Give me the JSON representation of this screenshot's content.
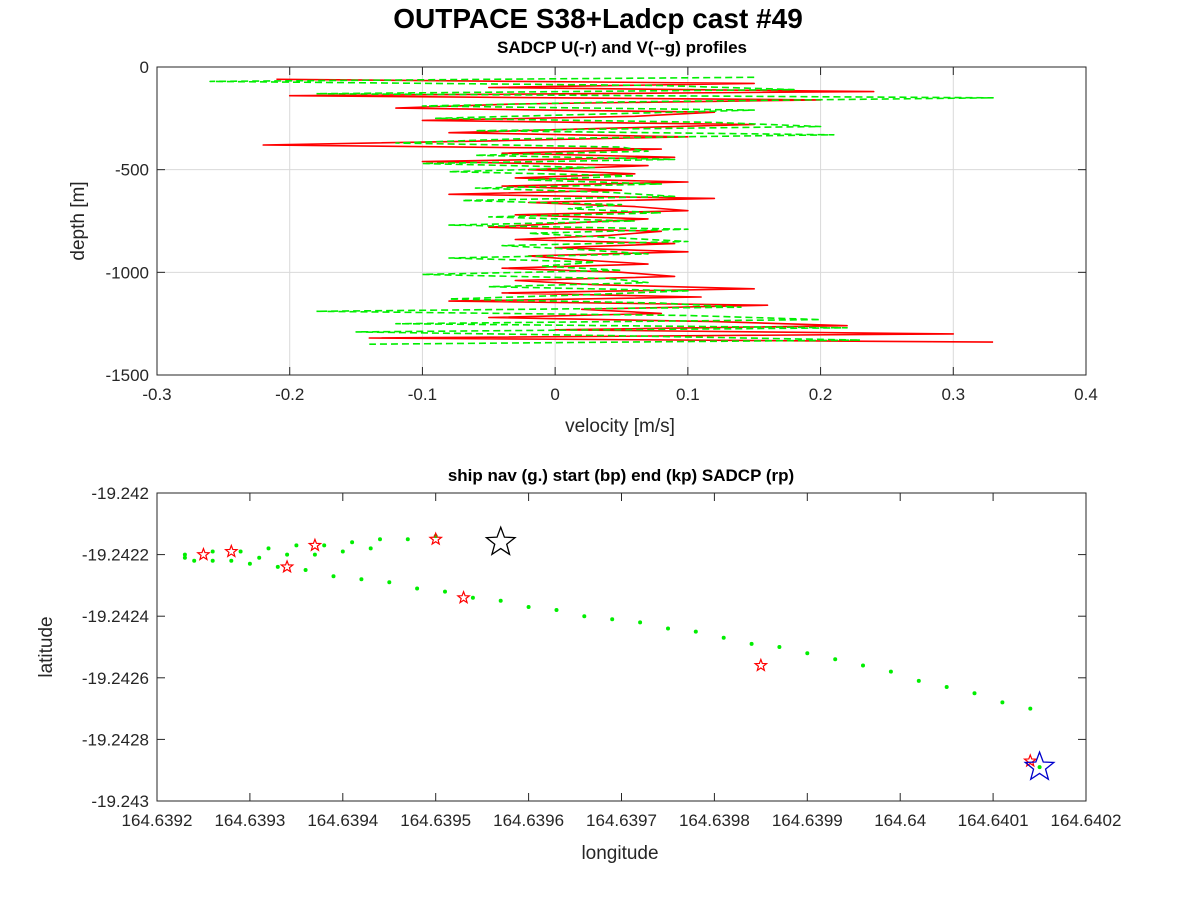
{
  "figure_title": "OUTPACE S38+Ladcp cast #49",
  "colors": {
    "u_line": "#ff0000",
    "v_line": "#00ee00",
    "ship_nav": "#00ee00",
    "sadcp_marker": "#ff0000",
    "start_marker": "#0000cc",
    "end_marker": "#000000",
    "grid": "#d9d9d9",
    "axis": "#262626"
  },
  "chart_data": [
    {
      "type": "line",
      "title": "SADCP U(-r) and V(--g) profiles",
      "xlabel": "velocity [m/s]",
      "ylabel": "depth [m]",
      "xlim": [
        -0.3,
        0.4
      ],
      "ylim": [
        -1500,
        0
      ],
      "xticks": [
        "-0.3",
        "-0.2",
        "-0.1",
        "0",
        "0.1",
        "0.2",
        "0.3",
        "0.4"
      ],
      "yticks": [
        "-1500",
        "-1000",
        "-500",
        "0"
      ],
      "grid": true,
      "series": [
        {
          "label": "U",
          "style": "solid",
          "color": "red",
          "depth": [
            -60,
            -80,
            -100,
            -120,
            -140,
            -160,
            -180,
            -200,
            -220,
            -240,
            -260,
            -280,
            -300,
            -320,
            -340,
            -360,
            -380,
            -400,
            -420,
            -440,
            -460,
            -480,
            -500,
            -520,
            -540,
            -560,
            -580,
            -600,
            -620,
            -640,
            -660,
            -680,
            -700,
            -720,
            -740,
            -760,
            -780,
            -800,
            -820,
            -840,
            -860,
            -880,
            -900,
            -920,
            -940,
            -960,
            -980,
            -1000,
            -1020,
            -1040,
            -1060,
            -1080,
            -1100,
            -1120,
            -1140,
            -1160,
            -1180,
            -1200,
            -1220,
            -1240,
            -1260,
            -1280,
            -1300,
            -1320,
            -1340
          ],
          "values": [
            -0.21,
            0.15,
            -0.05,
            0.24,
            -0.2,
            0.2,
            -0.03,
            -0.12,
            0.12,
            0.06,
            -0.1,
            0.15,
            0.03,
            -0.08,
            0.1,
            -0.05,
            -0.22,
            0.08,
            -0.04,
            0.09,
            -0.1,
            0.07,
            -0.02,
            0.06,
            -0.03,
            0.1,
            -0.04,
            0.05,
            -0.08,
            0.12,
            -0.02,
            0.06,
            0.1,
            -0.03,
            0.07,
            0.01,
            -0.05,
            0.08,
            0.04,
            -0.03,
            0.09,
            0.0,
            0.1,
            -0.02,
            0.02,
            0.07,
            -0.04,
            0.05,
            0.09,
            -0.03,
            0.03,
            0.15,
            -0.04,
            0.11,
            -0.08,
            0.16,
            0.02,
            0.08,
            -0.05,
            0.12,
            0.22,
            0.0,
            0.3,
            -0.14,
            0.33
          ]
        },
        {
          "label": "V",
          "style": "dashed",
          "color": "green",
          "depth": [
            -50,
            -70,
            -90,
            -110,
            -130,
            -150,
            -170,
            -190,
            -210,
            -230,
            -250,
            -270,
            -290,
            -310,
            -330,
            -350,
            -370,
            -390,
            -410,
            -430,
            -450,
            -470,
            -490,
            -510,
            -530,
            -550,
            -570,
            -590,
            -610,
            -630,
            -650,
            -670,
            -690,
            -710,
            -730,
            -750,
            -770,
            -790,
            -810,
            -830,
            -850,
            -870,
            -890,
            -910,
            -930,
            -950,
            -970,
            -990,
            -1010,
            -1030,
            -1050,
            -1070,
            -1090,
            -1110,
            -1130,
            -1150,
            -1170,
            -1190,
            -1210,
            -1230,
            -1250,
            -1270,
            -1290,
            -1310,
            -1330,
            -1350
          ],
          "values": [
            0.15,
            -0.26,
            0.08,
            0.18,
            -0.18,
            0.33,
            0.05,
            -0.1,
            0.15,
            0.03,
            -0.09,
            0.12,
            0.2,
            -0.06,
            0.21,
            -0.03,
            -0.12,
            0.05,
            0.07,
            -0.06,
            0.09,
            -0.1,
            0.03,
            -0.08,
            0.06,
            -0.02,
            0.08,
            -0.06,
            0.04,
            0.09,
            -0.07,
            0.05,
            0.01,
            0.08,
            -0.05,
            0.06,
            -0.08,
            0.1,
            -0.02,
            0.04,
            0.1,
            -0.04,
            0.02,
            0.07,
            -0.08,
            0.03,
            -0.01,
            0.05,
            -0.1,
            0.04,
            0.07,
            -0.05,
            0.1,
            0.02,
            -0.08,
            0.08,
            0.14,
            -0.18,
            0.1,
            0.2,
            -0.12,
            0.22,
            -0.15,
            0.06,
            0.23,
            -0.14
          ]
        }
      ]
    },
    {
      "type": "scatter",
      "title": "ship nav (g.) start (bp) end (kp) SADCP (rp)",
      "xlabel": "longitude",
      "ylabel": "latitude",
      "xlim": [
        164.6392,
        164.6402
      ],
      "ylim": [
        -19.243,
        -19.242
      ],
      "xticks": [
        "164.6392",
        "164.6393",
        "164.6394",
        "164.6395",
        "164.6396",
        "164.6397",
        "164.6398",
        "164.6399",
        "164.64",
        "164.6401",
        "164.6402"
      ],
      "yticks": [
        "-19.243",
        "-19.2428",
        "-19.2426",
        "-19.2424",
        "-19.2422",
        "-19.242"
      ],
      "grid": false,
      "ship_nav": {
        "lon": [
          164.63923,
          164.63926,
          164.6393,
          164.63933,
          164.63936,
          164.63939,
          164.63942,
          164.63945,
          164.63948,
          164.63951,
          164.63954,
          164.63957,
          164.6396,
          164.63963,
          164.63966,
          164.63969,
          164.63972,
          164.63975,
          164.63978,
          164.63981,
          164.63984,
          164.63987,
          164.6399,
          164.63993,
          164.63996,
          164.63999,
          164.64002,
          164.64005,
          164.64008,
          164.64011,
          164.64014,
          164.64015,
          164.63923,
          164.63926,
          164.63929,
          164.63932,
          164.63935,
          164.63938,
          164.63941,
          164.63944,
          164.63947,
          164.6395,
          164.63924,
          164.63928,
          164.63931,
          164.63934,
          164.63937,
          164.6394,
          164.63943
        ],
        "lat": [
          -19.24221,
          -19.24222,
          -19.24223,
          -19.24224,
          -19.24225,
          -19.24227,
          -19.24228,
          -19.24229,
          -19.24231,
          -19.24232,
          -19.24234,
          -19.24235,
          -19.24237,
          -19.24238,
          -19.2424,
          -19.24241,
          -19.24242,
          -19.24244,
          -19.24245,
          -19.24247,
          -19.24249,
          -19.2425,
          -19.24252,
          -19.24254,
          -19.24256,
          -19.24258,
          -19.24261,
          -19.24263,
          -19.24265,
          -19.24268,
          -19.2427,
          -19.24289,
          -19.2422,
          -19.24219,
          -19.24219,
          -19.24218,
          -19.24217,
          -19.24217,
          -19.24216,
          -19.24215,
          -19.24215,
          -19.24214,
          -19.24222,
          -19.24222,
          -19.24221,
          -19.2422,
          -19.2422,
          -19.24219,
          -19.24218
        ]
      },
      "sadcp": {
        "lon": [
          164.63925,
          164.63928,
          164.63934,
          164.63937,
          164.6395,
          164.63953,
          164.63985,
          164.64014
        ],
        "lat": [
          -19.2422,
          -19.24219,
          -19.24224,
          -19.24217,
          -19.24215,
          -19.24234,
          -19.24256,
          -19.24287
        ]
      },
      "start": {
        "lon": 164.64015,
        "lat": -19.24289
      },
      "end": {
        "lon": 164.63957,
        "lat": -19.24216
      }
    }
  ]
}
